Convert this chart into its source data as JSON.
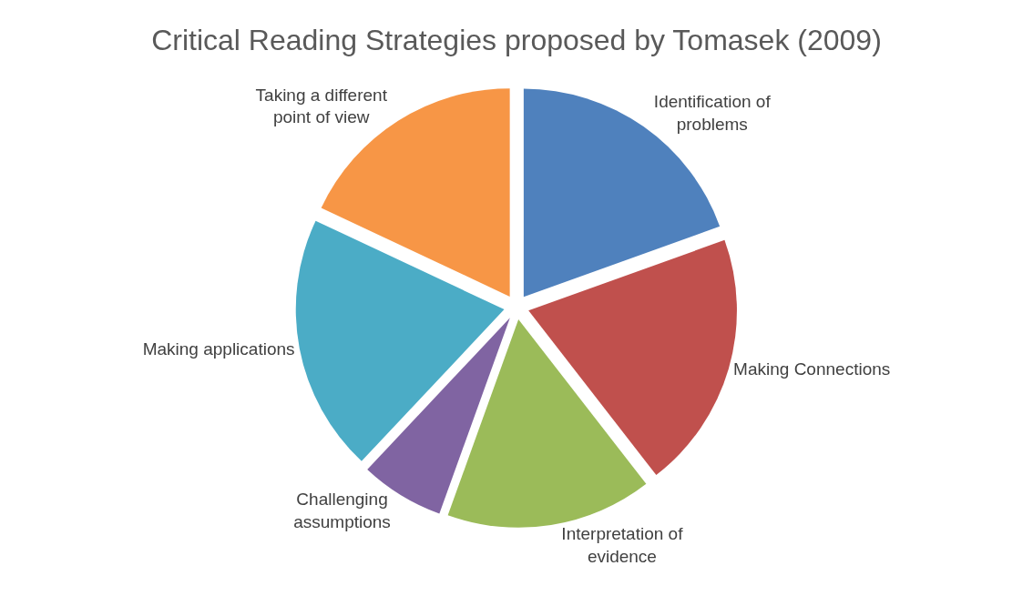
{
  "chart_data": {
    "type": "pie",
    "title": "Critical Reading Strategies proposed by Tomasek (2009)",
    "categories": [
      "Identification of problems",
      "Making Connections",
      "Interpretation of evidence",
      "Challenging assumptions",
      "Making applications",
      "Taking a different point of view"
    ],
    "values": [
      19.5,
      20,
      16,
      6.5,
      20,
      18
    ],
    "colors": [
      "#4f81bd",
      "#c0504d",
      "#9bbb59",
      "#8064a2",
      "#4bacc6",
      "#f79646"
    ],
    "legend": false
  }
}
